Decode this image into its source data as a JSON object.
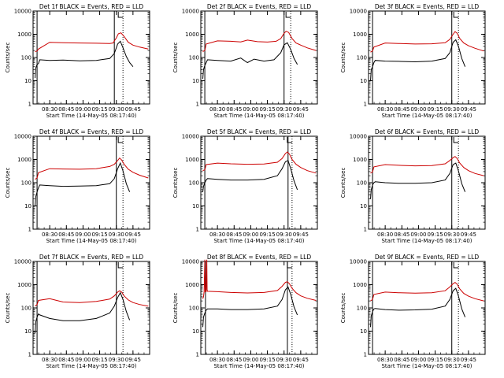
{
  "chart_data": [
    {
      "type": "line",
      "title": "Det 1f BLACK = Events, RED = LLD",
      "ylabel": "Counts/sec",
      "xlabel": "Start Time (14-May-05 08:17:40)",
      "xticks": [
        "08:30",
        "08:45",
        "09:00",
        "09:15",
        "09:30",
        "09:45"
      ],
      "yticks": [
        "1",
        "10",
        "100",
        "1000",
        "10000"
      ],
      "yscale": "log",
      "ylim": [
        1,
        10000
      ],
      "series": [
        {
          "color": "#cc0000",
          "x": [
            8.28,
            8.31,
            8.33,
            8.5,
            8.7,
            8.95,
            9.2,
            9.4,
            9.45,
            9.5,
            9.53,
            9.57,
            9.62,
            9.68,
            9.75,
            9.85,
            9.98
          ],
          "y": [
            180,
            190,
            230,
            450,
            430,
            420,
            410,
            400,
            420,
            700,
            1050,
            1150,
            780,
            450,
            340,
            280,
            230
          ]
        },
        {
          "color": "#000000",
          "x": [
            8.28,
            8.29,
            8.31,
            8.33,
            8.35,
            8.5,
            8.7,
            8.95,
            9.2,
            9.4,
            9.47,
            9.52,
            9.56,
            9.6,
            9.65,
            9.7,
            9.75
          ],
          "y": [
            13,
            35,
            50,
            55,
            80,
            75,
            78,
            72,
            75,
            90,
            150,
            380,
            500,
            260,
            110,
            60,
            40
          ]
        }
      ],
      "markers": {
        "solid": [
          8.31,
          9.47
        ],
        "dotted": [
          9.6
        ]
      }
    },
    {
      "type": "line",
      "title": "Det 2f BLACK = Events, RED = LLD",
      "ylabel": "Counts/sec",
      "xlabel": "Start Time (14-May-05 08:17:40)",
      "xticks": [
        "08:30",
        "08:45",
        "09:00",
        "09:15",
        "09:30",
        "09:45"
      ],
      "yticks": [
        "1",
        "10",
        "100",
        "1000",
        "10000"
      ],
      "yscale": "log",
      "ylim": [
        1,
        10000
      ],
      "series": [
        {
          "color": "#cc0000",
          "x": [
            8.28,
            8.31,
            8.33,
            8.5,
            8.7,
            8.85,
            8.95,
            9.1,
            9.25,
            9.38,
            9.45,
            9.5,
            9.53,
            9.57,
            9.62,
            9.68,
            9.75,
            9.85,
            9.98
          ],
          "y": [
            180,
            200,
            380,
            520,
            500,
            470,
            560,
            480,
            460,
            500,
            650,
            1100,
            1350,
            1200,
            650,
            420,
            340,
            260,
            200
          ]
        },
        {
          "color": "#000000",
          "x": [
            8.28,
            8.29,
            8.31,
            8.33,
            8.35,
            8.5,
            8.7,
            8.85,
            8.95,
            9.05,
            9.2,
            9.35,
            9.45,
            9.5,
            9.55,
            9.6,
            9.65,
            9.7
          ],
          "y": [
            12,
            30,
            45,
            60,
            80,
            75,
            70,
            95,
            60,
            85,
            70,
            80,
            160,
            350,
            430,
            220,
            90,
            50
          ]
        }
      ],
      "markers": {
        "solid": [
          8.31,
          9.5
        ],
        "dotted": [
          9.6
        ]
      }
    },
    {
      "type": "line",
      "title": "Det 3f BLACK = Events, RED = LLD",
      "ylabel": "Counts/sec",
      "xlabel": "Start Time (14-May-05 08:17:40)",
      "xticks": [
        "08:30",
        "08:45",
        "09:00",
        "09:15",
        "09:30",
        "09:45"
      ],
      "yticks": [
        "1",
        "10",
        "100",
        "1000",
        "10000"
      ],
      "yscale": "log",
      "ylim": [
        1,
        10000
      ],
      "series": [
        {
          "color": "#cc0000",
          "x": [
            8.28,
            8.31,
            8.33,
            8.5,
            8.7,
            8.95,
            9.2,
            9.4,
            9.47,
            9.52,
            9.55,
            9.58,
            9.62,
            9.68,
            9.75,
            9.85,
            9.98
          ],
          "y": [
            170,
            190,
            280,
            420,
            400,
            380,
            390,
            430,
            600,
            1000,
            1300,
            1100,
            650,
            420,
            320,
            250,
            190
          ]
        },
        {
          "color": "#000000",
          "x": [
            8.28,
            8.29,
            8.31,
            8.33,
            8.35,
            8.5,
            8.7,
            8.95,
            9.2,
            9.4,
            9.47,
            9.52,
            9.56,
            9.6,
            9.65,
            9.7
          ],
          "y": [
            10,
            30,
            40,
            60,
            75,
            70,
            68,
            65,
            70,
            90,
            160,
            450,
            580,
            300,
            90,
            40
          ]
        }
      ],
      "markers": {
        "solid": [
          8.31,
          9.5
        ],
        "dotted": [
          9.6
        ]
      }
    },
    {
      "type": "line",
      "title": "Det 4f BLACK = Events, RED = LLD",
      "ylabel": "Counts/sec",
      "xlabel": "Start Time (14-May-05 08:17:40)",
      "xticks": [
        "08:30",
        "08:45",
        "09:00",
        "09:15",
        "09:30",
        "09:45"
      ],
      "yticks": [
        "1",
        "10",
        "100",
        "1000",
        "10000"
      ],
      "yscale": "log",
      "ylim": [
        1,
        10000
      ],
      "series": [
        {
          "color": "#cc0000",
          "x": [
            8.28,
            8.31,
            8.33,
            8.5,
            8.7,
            8.95,
            9.2,
            9.4,
            9.47,
            9.52,
            9.55,
            9.58,
            9.62,
            9.68,
            9.75,
            9.85,
            9.98
          ],
          "y": [
            140,
            160,
            270,
            400,
            390,
            380,
            400,
            500,
            620,
            900,
            1150,
            950,
            600,
            380,
            280,
            210,
            160
          ]
        },
        {
          "color": "#000000",
          "x": [
            8.28,
            8.29,
            8.31,
            8.33,
            8.35,
            8.5,
            8.7,
            8.95,
            9.2,
            9.4,
            9.47,
            9.52,
            9.56,
            9.6,
            9.65,
            9.7
          ],
          "y": [
            10,
            25,
            40,
            60,
            80,
            75,
            70,
            72,
            75,
            90,
            150,
            400,
            700,
            320,
            90,
            40
          ]
        }
      ],
      "markers": {
        "solid": [
          8.31,
          9.5
        ],
        "dotted": [
          9.6
        ]
      }
    },
    {
      "type": "line",
      "title": "Det 5f BLACK = Events, RED = LLD",
      "ylabel": "Counts/sec",
      "xlabel": "Start Time (14-May-05 08:17:40)",
      "xticks": [
        "08:30",
        "08:45",
        "09:00",
        "09:15",
        "09:30",
        "09:45"
      ],
      "yticks": [
        "1",
        "10",
        "100",
        "1000",
        "10000"
      ],
      "yscale": "log",
      "ylim": [
        1,
        10000
      ],
      "series": [
        {
          "color": "#cc0000",
          "x": [
            8.28,
            8.31,
            8.33,
            8.5,
            8.7,
            8.95,
            9.2,
            9.4,
            9.47,
            9.52,
            9.55,
            9.58,
            9.62,
            9.68,
            9.75,
            9.85,
            9.98
          ],
          "y": [
            330,
            360,
            600,
            700,
            650,
            620,
            640,
            760,
            1100,
            1800,
            2100,
            1700,
            1000,
            620,
            450,
            330,
            260
          ]
        },
        {
          "color": "#000000",
          "x": [
            8.28,
            8.29,
            8.31,
            8.33,
            8.35,
            8.5,
            8.7,
            8.95,
            9.2,
            9.4,
            9.47,
            9.52,
            9.56,
            9.6,
            9.65,
            9.7
          ],
          "y": [
            40,
            70,
            100,
            130,
            150,
            140,
            130,
            130,
            140,
            200,
            400,
            800,
            900,
            400,
            120,
            50
          ]
        }
      ],
      "markers": {
        "solid": [
          8.31,
          9.56
        ],
        "dotted": [
          9.62
        ]
      }
    },
    {
      "type": "line",
      "title": "Det 6f BLACK = Events, RED = LLD",
      "ylabel": "Counts/sec",
      "xlabel": "Start Time (14-May-05 08:17:40)",
      "xticks": [
        "08:30",
        "08:45",
        "09:00",
        "09:15",
        "09:30",
        "09:45"
      ],
      "yticks": [
        "1",
        "10",
        "100",
        "1000",
        "10000"
      ],
      "yscale": "log",
      "ylim": [
        1,
        10000
      ],
      "series": [
        {
          "color": "#cc0000",
          "x": [
            8.28,
            8.31,
            8.33,
            8.5,
            8.7,
            8.95,
            9.2,
            9.4,
            9.47,
            9.52,
            9.55,
            9.58,
            9.62,
            9.68,
            9.75,
            9.85,
            9.98
          ],
          "y": [
            260,
            290,
            480,
            600,
            560,
            530,
            550,
            650,
            900,
            1200,
            1350,
            1100,
            700,
            450,
            330,
            250,
            200
          ]
        },
        {
          "color": "#000000",
          "x": [
            8.28,
            8.29,
            8.31,
            8.33,
            8.35,
            8.5,
            8.7,
            8.95,
            9.2,
            9.4,
            9.47,
            9.52,
            9.56,
            9.6,
            9.65,
            9.7
          ],
          "y": [
            20,
            50,
            80,
            100,
            110,
            100,
            95,
            95,
            100,
            130,
            250,
            600,
            700,
            320,
            90,
            40
          ]
        }
      ],
      "markers": {
        "solid": [
          8.31,
          9.5
        ],
        "dotted": [
          9.6
        ]
      }
    },
    {
      "type": "line",
      "title": "Det 7f BLACK = Events, RED = LLD",
      "ylabel": "Counts/sec",
      "xlabel": "Start Time (14-May-05 08:17:40)",
      "xticks": [
        "08:30",
        "08:45",
        "09:00",
        "09:15",
        "09:30",
        "09:45"
      ],
      "yticks": [
        "1",
        "10",
        "100",
        "1000",
        "10000"
      ],
      "yscale": "log",
      "ylim": [
        1,
        10000
      ],
      "series": [
        {
          "color": "#cc0000",
          "x": [
            8.28,
            8.31,
            8.33,
            8.5,
            8.7,
            8.95,
            9.2,
            9.4,
            9.47,
            9.52,
            9.55,
            9.58,
            9.62,
            9.68,
            9.75,
            9.85,
            9.98
          ],
          "y": [
            120,
            140,
            210,
            250,
            180,
            170,
            190,
            240,
            330,
            480,
            550,
            480,
            320,
            220,
            170,
            140,
            120
          ]
        },
        {
          "color": "#000000",
          "x": [
            8.28,
            8.29,
            8.31,
            8.33,
            8.35,
            8.5,
            8.7,
            8.95,
            9.2,
            9.4,
            9.47,
            9.52,
            9.56,
            9.6,
            9.65,
            9.7
          ],
          "y": [
            8,
            25,
            40,
            55,
            50,
            35,
            28,
            28,
            35,
            60,
            120,
            280,
            450,
            230,
            70,
            30
          ]
        }
      ],
      "markers": {
        "solid": [
          8.31,
          9.5
        ],
        "dotted": [
          9.6
        ]
      }
    },
    {
      "type": "line",
      "title": "Det 8f BLACK = Events, RED = LLD",
      "ylabel": "Counts/sec",
      "xlabel": "Start Time (14-May-05 08:17:40)",
      "xticks": [
        "08:30",
        "08:45",
        "09:00",
        "09:15",
        "09:30",
        "09:45"
      ],
      "yticks": [
        "1",
        "10",
        "100",
        "1000",
        "10000"
      ],
      "yscale": "log",
      "ylim": [
        1,
        10000
      ],
      "series": [
        {
          "color": "#cc0000",
          "x": [
            8.28,
            8.29,
            8.3,
            8.31,
            8.315,
            8.33,
            8.34,
            8.345,
            8.35,
            8.5,
            8.7,
            8.95,
            9.2,
            9.4,
            9.47,
            9.52,
            9.55,
            9.58,
            9.62,
            9.68,
            9.75,
            9.85,
            9.98
          ],
          "y": [
            250,
            300,
            500,
            12000,
            500,
            500,
            12000,
            600,
            520,
            500,
            460,
            440,
            460,
            560,
            850,
            1250,
            1350,
            1100,
            700,
            450,
            330,
            260,
            210
          ]
        },
        {
          "color": "#000000",
          "x": [
            8.28,
            8.29,
            8.31,
            8.33,
            8.35,
            8.5,
            8.7,
            8.95,
            9.2,
            9.4,
            9.47,
            9.52,
            9.56,
            9.6,
            9.65,
            9.7
          ],
          "y": [
            15,
            40,
            60,
            80,
            90,
            90,
            85,
            85,
            90,
            120,
            230,
            600,
            800,
            380,
            110,
            50
          ]
        }
      ],
      "markers": {
        "solid": [
          8.32,
          9.55
        ],
        "dotted": [
          9.62
        ]
      }
    },
    {
      "type": "line",
      "title": "Det 9f BLACK = Events, RED = LLD",
      "ylabel": "Counts/sec",
      "xlabel": "Start Time (14-May-05 08:17:40)",
      "xticks": [
        "08:30",
        "08:45",
        "09:00",
        "09:15",
        "09:30",
        "09:45"
      ],
      "yticks": [
        "1",
        "10",
        "100",
        "1000",
        "10000"
      ],
      "yscale": "log",
      "ylim": [
        1,
        10000
      ],
      "series": [
        {
          "color": "#cc0000",
          "x": [
            8.28,
            8.31,
            8.33,
            8.5,
            8.7,
            8.95,
            9.2,
            9.4,
            9.47,
            9.52,
            9.55,
            9.58,
            9.62,
            9.68,
            9.75,
            9.85,
            9.98
          ],
          "y": [
            200,
            230,
            380,
            480,
            450,
            430,
            450,
            550,
            800,
            1100,
            1250,
            1050,
            650,
            420,
            320,
            250,
            200
          ]
        },
        {
          "color": "#000000",
          "x": [
            8.28,
            8.29,
            8.31,
            8.33,
            8.35,
            8.5,
            8.7,
            8.95,
            9.2,
            9.4,
            9.47,
            9.52,
            9.56,
            9.6,
            9.65,
            9.7
          ],
          "y": [
            15,
            45,
            70,
            90,
            95,
            85,
            80,
            82,
            88,
            120,
            230,
            550,
            700,
            320,
            90,
            40
          ]
        }
      ],
      "markers": {
        "solid": [
          8.31,
          9.5
        ],
        "dotted": [
          9.6
        ]
      }
    }
  ]
}
